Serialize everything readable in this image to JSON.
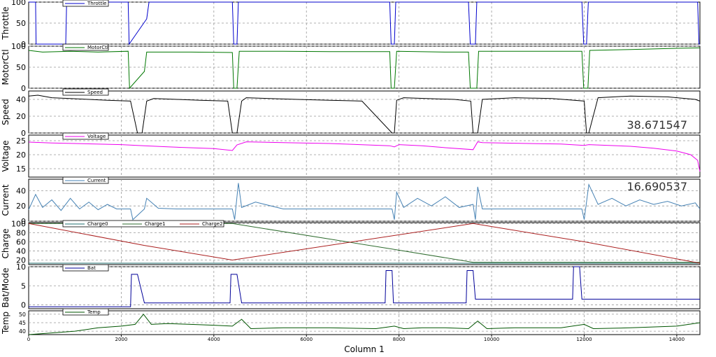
{
  "chart_data": {
    "type": "line",
    "xlabel": "Column 1",
    "xlim": [
      0,
      14500
    ],
    "xticks": [
      0,
      2000,
      4000,
      6000,
      8000,
      10000,
      12000,
      14000
    ],
    "panels": [
      {
        "ylabel": "Throttle",
        "ylim": [
          0,
          100
        ],
        "yticks": [
          0,
          50,
          100
        ],
        "series": [
          {
            "name": "Throttle",
            "color": "#0000cc",
            "x": [
              0,
              150,
              160,
              800,
              820,
              2150,
              2170,
              2550,
              2600,
              4400,
              4430,
              4500,
              4530,
              7800,
              7830,
              7900,
              7930,
              9500,
              9540,
              9650,
              9680,
              11950,
              11990,
              12050,
              12090,
              14450,
              14480,
              14500
            ],
            "y": [
              100,
              100,
              0,
              0,
              100,
              100,
              0,
              60,
              100,
              100,
              0,
              0,
              100,
              100,
              0,
              0,
              100,
              100,
              0,
              0,
              100,
              100,
              0,
              0,
              100,
              100,
              0,
              0
            ]
          }
        ]
      },
      {
        "ylabel": "MotorCtl",
        "ylim": [
          0,
          100
        ],
        "yticks": [
          0,
          50,
          100
        ],
        "series": [
          {
            "name": "MotorCtl",
            "color": "#007700",
            "x": [
              0,
              300,
              900,
              1500,
              2150,
              2180,
              2500,
              2550,
              3500,
              4400,
              4430,
              4500,
              4550,
              5500,
              6500,
              7800,
              7830,
              7900,
              7950,
              9000,
              9500,
              9540,
              9680,
              9720,
              11000,
              11950,
              11990,
              12080,
              12120,
              13000,
              14000,
              14500
            ],
            "y": [
              90,
              86,
              88,
              86,
              88,
              0,
              40,
              86,
              86,
              85,
              0,
              0,
              88,
              88,
              87,
              87,
              0,
              0,
              88,
              86,
              86,
              0,
              0,
              88,
              88,
              88,
              0,
              0,
              90,
              92,
              95,
              96
            ]
          }
        ]
      },
      {
        "ylabel": "Speed",
        "ylim": [
          0,
          50
        ],
        "yticks": [
          0,
          20,
          40
        ],
        "readout": "38.671547",
        "series": [
          {
            "name": "Speed",
            "color": "#000000",
            "x": [
              0,
              200,
              500,
              900,
              1300,
              1700,
              2200,
              2350,
              2450,
              2550,
              2700,
              3200,
              3700,
              4300,
              4400,
              4500,
              4600,
              4700,
              5200,
              5800,
              6500,
              7200,
              7850,
              7900,
              7950,
              8100,
              8600,
              9200,
              9550,
              9600,
              9700,
              9800,
              10500,
              11300,
              12000,
              12050,
              12100,
              12300,
              13000,
              13800,
              14400,
              14500
            ],
            "y": [
              44,
              45,
              42,
              41,
              40,
              39,
              38,
              0,
              0,
              38,
              41,
              40,
              39,
              38,
              0,
              0,
              38,
              42,
              41,
              40,
              39,
              38,
              0,
              0,
              39,
              42,
              41,
              40,
              38,
              0,
              0,
              40,
              42,
              41,
              38,
              0,
              0,
              42,
              44,
              43,
              40,
              38
            ]
          }
        ]
      },
      {
        "ylabel": "Voltage",
        "ylim": [
          12,
          27
        ],
        "yticks": [
          15,
          20,
          25
        ],
        "series": [
          {
            "name": "Voltage",
            "color": "#ee00ee",
            "x": [
              0,
              500,
              1000,
              2000,
              2500,
              3000,
              4000,
              4400,
              4500,
              4700,
              5500,
              6500,
              7800,
              7900,
              8000,
              8500,
              9000,
              9600,
              9700,
              9800,
              10500,
              11500,
              12000,
              12100,
              13000,
              13500,
              14000,
              14300,
              14450,
              14500
            ],
            "y": [
              24.5,
              24.2,
              24,
              23.6,
              23.2,
              22.8,
              22.2,
              21.5,
              23.5,
              24.6,
              24.3,
              24,
              23.2,
              22.8,
              23.6,
              23.2,
              22.5,
              21.8,
              24.6,
              24.3,
              24.1,
              23.8,
              23.3,
              23.6,
              23,
              22.3,
              21.3,
              20,
              18,
              14
            ]
          }
        ]
      },
      {
        "ylabel": "Current",
        "ylim": [
          0,
          55
        ],
        "yticks": [
          0,
          20,
          40
        ],
        "readout": "16.690537",
        "series": [
          {
            "name": "Current",
            "color": "#4682b4",
            "x": [
              0,
              150,
              300,
              500,
              700,
              900,
              1100,
              1300,
              1500,
              1700,
              1900,
              2200,
              2250,
              2500,
              2550,
              2800,
              3200,
              3600,
              4000,
              4400,
              4450,
              4530,
              4600,
              4900,
              5500,
              6500,
              7500,
              7850,
              7900,
              7950,
              8100,
              8400,
              8700,
              9000,
              9300,
              9600,
              9650,
              9700,
              9800,
              10500,
              11500,
              11950,
              12000,
              12100,
              12300,
              12600,
              12900,
              13200,
              13500,
              13800,
              14100,
              14400,
              14500
            ],
            "y": [
              15,
              35,
              18,
              28,
              14,
              30,
              16,
              25,
              15,
              22,
              16,
              16,
              2,
              16,
              30,
              17,
              16,
              16,
              16,
              16,
              2,
              50,
              18,
              25,
              16,
              16,
              16,
              16,
              2,
              38,
              18,
              30,
              20,
              32,
              18,
              22,
              2,
              45,
              16,
              16,
              16,
              16,
              2,
              48,
              22,
              30,
              20,
              28,
              22,
              26,
              20,
              24,
              16
            ]
          }
        ]
      },
      {
        "ylabel": "Charge",
        "ylim": [
          10,
          102
        ],
        "yticks": [
          20,
          40,
          60,
          80,
          100
        ],
        "legend": "top",
        "series": [
          {
            "name": "Charge0",
            "color": "#1e6e6e",
            "x": [
              0,
              14500
            ],
            "y": [
              13,
              13
            ]
          },
          {
            "name": "Charge1",
            "color": "#2e6b2e",
            "x": [
              0,
              4400,
              7800,
              9600,
              14500
            ],
            "y": [
              100,
              100,
              45,
              15,
              15
            ]
          },
          {
            "name": "Charge2",
            "color": "#aa1e1e",
            "x": [
              0,
              2500,
              4400,
              9600,
              12000,
              14500
            ],
            "y": [
              100,
              52,
              20,
              100,
              60,
              13
            ]
          }
        ]
      },
      {
        "ylabel": "Bat/Mode",
        "ylim": [
          -1,
          10
        ],
        "yticks": [
          0,
          5,
          10
        ],
        "series": [
          {
            "name": "Bat",
            "color": "#000099",
            "x": [
              0,
              2200,
              2220,
              2350,
              2500,
              4350,
              4370,
              4500,
              4600,
              7700,
              7720,
              7850,
              7880,
              9450,
              9470,
              9600,
              9650,
              11750,
              11770,
              11900,
              11950,
              14500
            ],
            "y": [
              -0.5,
              -0.5,
              8,
              8,
              0.5,
              0.5,
              8,
              8,
              0.5,
              0.5,
              9,
              9,
              0.5,
              0.5,
              9,
              9,
              1.5,
              1.5,
              10,
              10,
              1.5,
              1.5
            ]
          }
        ]
      },
      {
        "ylabel": "Temp",
        "ylim": [
          38,
          52
        ],
        "yticks": [
          40,
          45,
          50
        ],
        "series": [
          {
            "name": "Temp",
            "color": "#005500",
            "x": [
              0,
              500,
              1000,
              1500,
              2000,
              2300,
              2480,
              2650,
              3000,
              3500,
              4000,
              4400,
              4600,
              4800,
              5500,
              6500,
              7500,
              7900,
              8100,
              8500,
              9000,
              9500,
              9700,
              9900,
              10500,
              11500,
              12000,
              12200,
              13000,
              14000,
              14500
            ],
            "y": [
              38,
              39,
              40,
              42,
              43,
              44,
              50,
              44,
              44.5,
              44,
              43.5,
              43,
              47,
              41.5,
              42,
              42,
              41.5,
              43,
              41.5,
              42,
              42,
              41.5,
              46,
              41.5,
              42,
              42,
              44,
              41.5,
              42,
              43,
              45
            ]
          }
        ]
      }
    ]
  }
}
